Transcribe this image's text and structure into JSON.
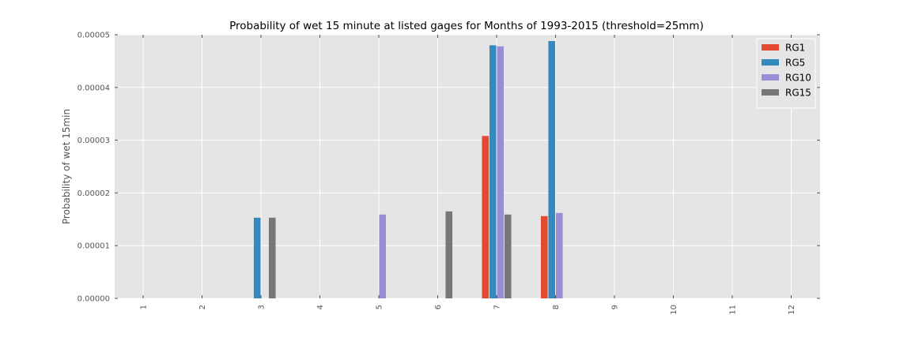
{
  "chart_data": {
    "type": "bar",
    "title": "Probability of wet 15 minute at listed gages for Months of 1993-2015 (threshold=25mm)",
    "xlabel": "",
    "ylabel": "Probability of wet 15min",
    "categories": [
      "1",
      "2",
      "3",
      "4",
      "5",
      "6",
      "7",
      "8",
      "9",
      "10",
      "11",
      "12"
    ],
    "ylim": [
      0,
      5e-05
    ],
    "yticks": [
      "0.00000",
      "0.00001",
      "0.00002",
      "0.00003",
      "0.00004",
      "0.00005"
    ],
    "grid": true,
    "legend_position": "top-right",
    "series": [
      {
        "name": "RG1",
        "color": "#E24A33",
        "values": [
          0,
          0,
          0,
          0,
          0,
          0,
          3.08e-05,
          1.56e-05,
          0,
          0,
          0,
          0
        ]
      },
      {
        "name": "RG5",
        "color": "#348ABD",
        "values": [
          0,
          0,
          1.53e-05,
          0,
          0,
          0,
          4.8e-05,
          4.88e-05,
          0,
          0,
          0,
          0
        ]
      },
      {
        "name": "RG10",
        "color": "#988ED5",
        "values": [
          0,
          0,
          0,
          0,
          1.59e-05,
          0,
          4.78e-05,
          1.62e-05,
          0,
          0,
          0,
          0
        ]
      },
      {
        "name": "RG15",
        "color": "#777777",
        "values": [
          0,
          0,
          1.53e-05,
          0,
          0,
          1.65e-05,
          1.59e-05,
          0,
          0,
          0,
          0,
          0
        ]
      }
    ]
  }
}
